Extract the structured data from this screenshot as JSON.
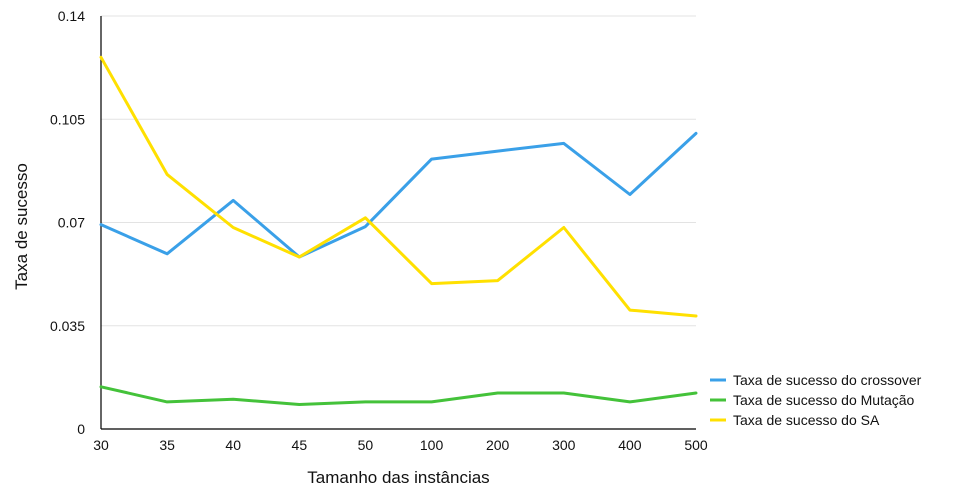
{
  "chart_data": {
    "type": "line",
    "xlabel": "Tamanho das instâncias",
    "ylabel": "Taxa de sucesso",
    "categories": [
      "30",
      "35",
      "40",
      "45",
      "50",
      "100",
      "200",
      "300",
      "400",
      "500"
    ],
    "ylim": [
      0,
      0.14
    ],
    "yticks": [
      "0",
      "0.035",
      "0.07",
      "0.105",
      "0.14"
    ],
    "grid": true,
    "legend": "right",
    "series": [
      {
        "name": "Taxa de sucesso do crossover",
        "color": "#3aa0e8",
        "values": [
          0.0693,
          0.0594,
          0.0775,
          0.0583,
          0.0686,
          0.0915,
          0.0942,
          0.0968,
          0.0795,
          0.1002
        ]
      },
      {
        "name": "Taxa de sucesso do Mutação",
        "color": "#44c23a",
        "values": [
          0.0143,
          0.0092,
          0.0101,
          0.0083,
          0.0092,
          0.0092,
          0.0122,
          0.0122,
          0.0092,
          0.0122
        ]
      },
      {
        "name": "Taxa de sucesso do SA",
        "color": "#ffe000",
        "values": [
          0.126,
          0.0863,
          0.0683,
          0.0583,
          0.0716,
          0.0493,
          0.0503,
          0.0683,
          0.0403,
          0.0383
        ]
      }
    ]
  }
}
